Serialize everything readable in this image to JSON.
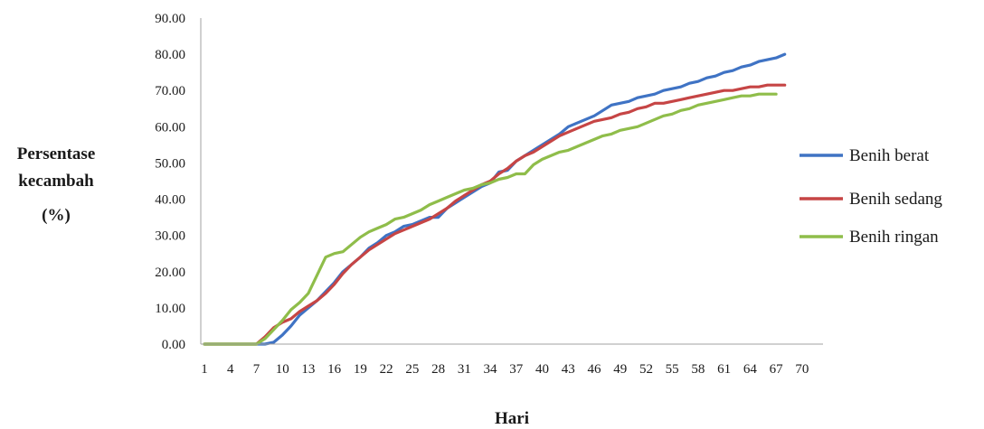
{
  "chart_data": {
    "type": "line",
    "title": "",
    "xlabel": "Hari",
    "ylabel_lines": [
      "Persentase",
      "kecambah",
      "(%)"
    ],
    "ylim": [
      0,
      90
    ],
    "yticks": [
      "0.00",
      "10.00",
      "20.00",
      "30.00",
      "40.00",
      "50.00",
      "60.00",
      "70.00",
      "80.00",
      "90.00"
    ],
    "xlim": [
      1,
      72
    ],
    "xticks": [
      1,
      4,
      7,
      10,
      13,
      16,
      19,
      22,
      25,
      28,
      31,
      34,
      37,
      40,
      43,
      46,
      49,
      52,
      55,
      58,
      61,
      64,
      67,
      70
    ],
    "grid": false,
    "legend_position": "right",
    "series": [
      {
        "name": "Benih berat",
        "color": "#3f73c4",
        "points": [
          [
            1,
            0
          ],
          [
            4,
            0
          ],
          [
            7,
            0
          ],
          [
            8,
            0
          ],
          [
            9,
            0.5
          ],
          [
            10,
            2.5
          ],
          [
            11,
            5
          ],
          [
            12,
            8
          ],
          [
            13,
            10
          ],
          [
            14,
            12
          ],
          [
            15,
            14.5
          ],
          [
            16,
            17
          ],
          [
            17,
            20
          ],
          [
            18,
            22
          ],
          [
            19,
            24
          ],
          [
            20,
            26.5
          ],
          [
            21,
            28
          ],
          [
            22,
            30
          ],
          [
            23,
            31
          ],
          [
            24,
            32.5
          ],
          [
            25,
            33
          ],
          [
            26,
            34
          ],
          [
            27,
            35
          ],
          [
            28,
            35
          ],
          [
            29,
            37.5
          ],
          [
            30,
            39
          ],
          [
            31,
            40.5
          ],
          [
            32,
            42
          ],
          [
            33,
            43.5
          ],
          [
            34,
            44.5
          ],
          [
            35,
            47.5
          ],
          [
            36,
            48
          ],
          [
            37,
            50.5
          ],
          [
            38,
            52
          ],
          [
            39,
            53.5
          ],
          [
            40,
            55
          ],
          [
            41,
            56.5
          ],
          [
            42,
            58
          ],
          [
            43,
            60
          ],
          [
            44,
            61
          ],
          [
            45,
            62
          ],
          [
            46,
            63
          ],
          [
            47,
            64.5
          ],
          [
            48,
            66
          ],
          [
            49,
            66.5
          ],
          [
            50,
            67
          ],
          [
            51,
            68
          ],
          [
            52,
            68.5
          ],
          [
            53,
            69
          ],
          [
            54,
            70
          ],
          [
            55,
            70.5
          ],
          [
            56,
            71
          ],
          [
            57,
            72
          ],
          [
            58,
            72.5
          ],
          [
            59,
            73.5
          ],
          [
            60,
            74
          ],
          [
            61,
            75
          ],
          [
            62,
            75.5
          ],
          [
            63,
            76.5
          ],
          [
            64,
            77
          ],
          [
            65,
            78
          ],
          [
            66,
            78.5
          ],
          [
            67,
            79
          ],
          [
            68,
            80
          ]
        ]
      },
      {
        "name": "Benih sedang",
        "color": "#c64545",
        "points": [
          [
            1,
            0
          ],
          [
            4,
            0
          ],
          [
            7,
            0
          ],
          [
            8,
            2
          ],
          [
            9,
            4.5
          ],
          [
            10,
            6
          ],
          [
            11,
            7
          ],
          [
            12,
            9
          ],
          [
            13,
            10.5
          ],
          [
            14,
            12
          ],
          [
            15,
            14
          ],
          [
            16,
            16.5
          ],
          [
            17,
            19.5
          ],
          [
            18,
            22
          ],
          [
            19,
            24
          ],
          [
            20,
            26
          ],
          [
            21,
            27.5
          ],
          [
            22,
            29
          ],
          [
            23,
            30.5
          ],
          [
            24,
            31.5
          ],
          [
            25,
            32.5
          ],
          [
            26,
            33.5
          ],
          [
            27,
            34.5
          ],
          [
            28,
            36
          ],
          [
            29,
            37.5
          ],
          [
            30,
            39.5
          ],
          [
            31,
            41
          ],
          [
            32,
            42.5
          ],
          [
            33,
            44
          ],
          [
            34,
            45
          ],
          [
            35,
            47
          ],
          [
            36,
            48.5
          ],
          [
            37,
            50.5
          ],
          [
            38,
            52
          ],
          [
            39,
            53
          ],
          [
            40,
            54.5
          ],
          [
            41,
            56
          ],
          [
            42,
            57.5
          ],
          [
            43,
            58.5
          ],
          [
            44,
            59.5
          ],
          [
            45,
            60.5
          ],
          [
            46,
            61.5
          ],
          [
            47,
            62
          ],
          [
            48,
            62.5
          ],
          [
            49,
            63.5
          ],
          [
            50,
            64
          ],
          [
            51,
            65
          ],
          [
            52,
            65.5
          ],
          [
            53,
            66.5
          ],
          [
            54,
            66.5
          ],
          [
            55,
            67
          ],
          [
            56,
            67.5
          ],
          [
            57,
            68
          ],
          [
            58,
            68.5
          ],
          [
            59,
            69
          ],
          [
            60,
            69.5
          ],
          [
            61,
            70
          ],
          [
            62,
            70
          ],
          [
            63,
            70.5
          ],
          [
            64,
            71
          ],
          [
            65,
            71
          ],
          [
            66,
            71.5
          ],
          [
            67,
            71.5
          ],
          [
            68,
            71.5
          ]
        ]
      },
      {
        "name": "Benih ringan",
        "color": "#8fbd4a",
        "points": [
          [
            1,
            0
          ],
          [
            4,
            0
          ],
          [
            7,
            0
          ],
          [
            8,
            1.5
          ],
          [
            9,
            4
          ],
          [
            10,
            6.5
          ],
          [
            11,
            9.5
          ],
          [
            12,
            11.5
          ],
          [
            13,
            14
          ],
          [
            14,
            19
          ],
          [
            15,
            24
          ],
          [
            16,
            25
          ],
          [
            17,
            25.5
          ],
          [
            18,
            27.5
          ],
          [
            19,
            29.5
          ],
          [
            20,
            31
          ],
          [
            21,
            32
          ],
          [
            22,
            33
          ],
          [
            23,
            34.5
          ],
          [
            24,
            35
          ],
          [
            25,
            36
          ],
          [
            26,
            37
          ],
          [
            27,
            38.5
          ],
          [
            28,
            39.5
          ],
          [
            29,
            40.5
          ],
          [
            30,
            41.5
          ],
          [
            31,
            42.5
          ],
          [
            32,
            43
          ],
          [
            33,
            44
          ],
          [
            34,
            44.5
          ],
          [
            35,
            45.5
          ],
          [
            36,
            46
          ],
          [
            37,
            47
          ],
          [
            38,
            47
          ],
          [
            39,
            49.5
          ],
          [
            40,
            51
          ],
          [
            41,
            52
          ],
          [
            42,
            53
          ],
          [
            43,
            53.5
          ],
          [
            44,
            54.5
          ],
          [
            45,
            55.5
          ],
          [
            46,
            56.5
          ],
          [
            47,
            57.5
          ],
          [
            48,
            58
          ],
          [
            49,
            59
          ],
          [
            50,
            59.5
          ],
          [
            51,
            60
          ],
          [
            52,
            61
          ],
          [
            53,
            62
          ],
          [
            54,
            63
          ],
          [
            55,
            63.5
          ],
          [
            56,
            64.5
          ],
          [
            57,
            65
          ],
          [
            58,
            66
          ],
          [
            59,
            66.5
          ],
          [
            60,
            67
          ],
          [
            61,
            67.5
          ],
          [
            62,
            68
          ],
          [
            63,
            68.5
          ],
          [
            64,
            68.5
          ],
          [
            65,
            69
          ],
          [
            66,
            69
          ],
          [
            67,
            69
          ]
        ]
      }
    ]
  }
}
